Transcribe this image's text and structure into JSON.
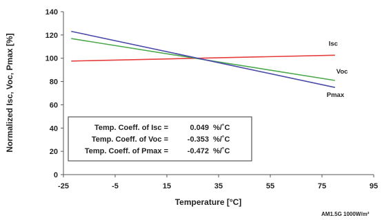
{
  "chart_data": {
    "type": "line",
    "xlabel": "Temperature [°C]",
    "ylabel": "Normalized Isc, Voc, Pmax [%]",
    "xlim": [
      -25,
      95
    ],
    "ylim": [
      0,
      140
    ],
    "xticks": [
      "-25",
      "-5",
      "15",
      "35",
      "55",
      "75",
      "95"
    ],
    "yticks": [
      "0",
      "20",
      "40",
      "60",
      "80",
      "100",
      "120",
      "140"
    ],
    "grid": false,
    "series": [
      {
        "name": "Isc",
        "color": "#e63c3c",
        "x": [
          -22,
          80
        ],
        "y": [
          97.6,
          102.6
        ]
      },
      {
        "name": "Voc",
        "color": "#4aa84a",
        "x": [
          -22,
          80
        ],
        "y": [
          116.9,
          80.9
        ]
      },
      {
        "name": "Pmax",
        "color": "#4a4aa8",
        "x": [
          -22,
          80
        ],
        "y": [
          123.1,
          74.9
        ]
      }
    ],
    "coefficients": [
      {
        "label": "Temp. Coeff. of Isc =",
        "value": "0.049",
        "unit": "%/˚C"
      },
      {
        "label": "Temp. Coeff. of Voc =",
        "value": "-0.353",
        "unit": "%/˚C"
      },
      {
        "label": "Temp. Coeff. of Pmax =",
        "value": "-0.472",
        "unit": "%/˚C"
      }
    ],
    "note": "AM1.5G 1000W/m²"
  }
}
